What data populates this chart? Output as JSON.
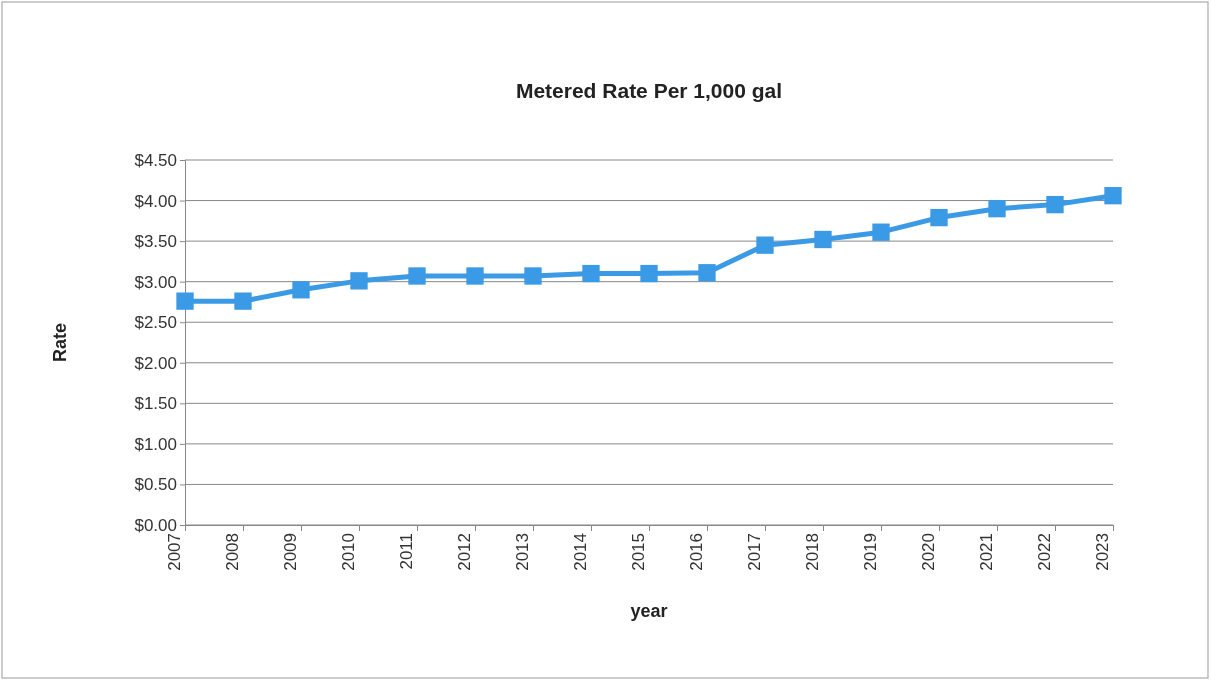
{
  "chart_data": {
    "type": "line",
    "title": "Metered Rate Per 1,000 gal",
    "xlabel": "year",
    "ylabel": "Rate",
    "categories": [
      "2007",
      "2008",
      "2009",
      "2010",
      "2011",
      "2012",
      "2013",
      "2014",
      "2015",
      "2016",
      "2017",
      "2018",
      "2019",
      "2020",
      "2021",
      "2022",
      "2023"
    ],
    "series": [
      {
        "color": "#3b9ae6",
        "values": [
          2.76,
          2.76,
          2.9,
          3.01,
          3.07,
          3.07,
          3.07,
          3.1,
          3.1,
          3.11,
          3.45,
          3.52,
          3.61,
          3.79,
          3.9,
          3.95,
          4.06
        ]
      }
    ],
    "ylim": [
      0,
      4.5
    ],
    "yticks": [
      {
        "value": 0,
        "label": "$0.00"
      },
      {
        "value": 0.5,
        "label": "$0.50"
      },
      {
        "value": 1,
        "label": "$1.00"
      },
      {
        "value": 1.5,
        "label": "$1.50"
      },
      {
        "value": 2,
        "label": "$2.00"
      },
      {
        "value": 2.5,
        "label": "$2.50"
      },
      {
        "value": 3,
        "label": "$3.00"
      },
      {
        "value": 3.5,
        "label": "$3.50"
      },
      {
        "value": 4,
        "label": "$4.00"
      },
      {
        "value": 4.5,
        "label": "$4.50"
      }
    ],
    "grid": "y",
    "marker": "square",
    "line_style": "solid"
  }
}
